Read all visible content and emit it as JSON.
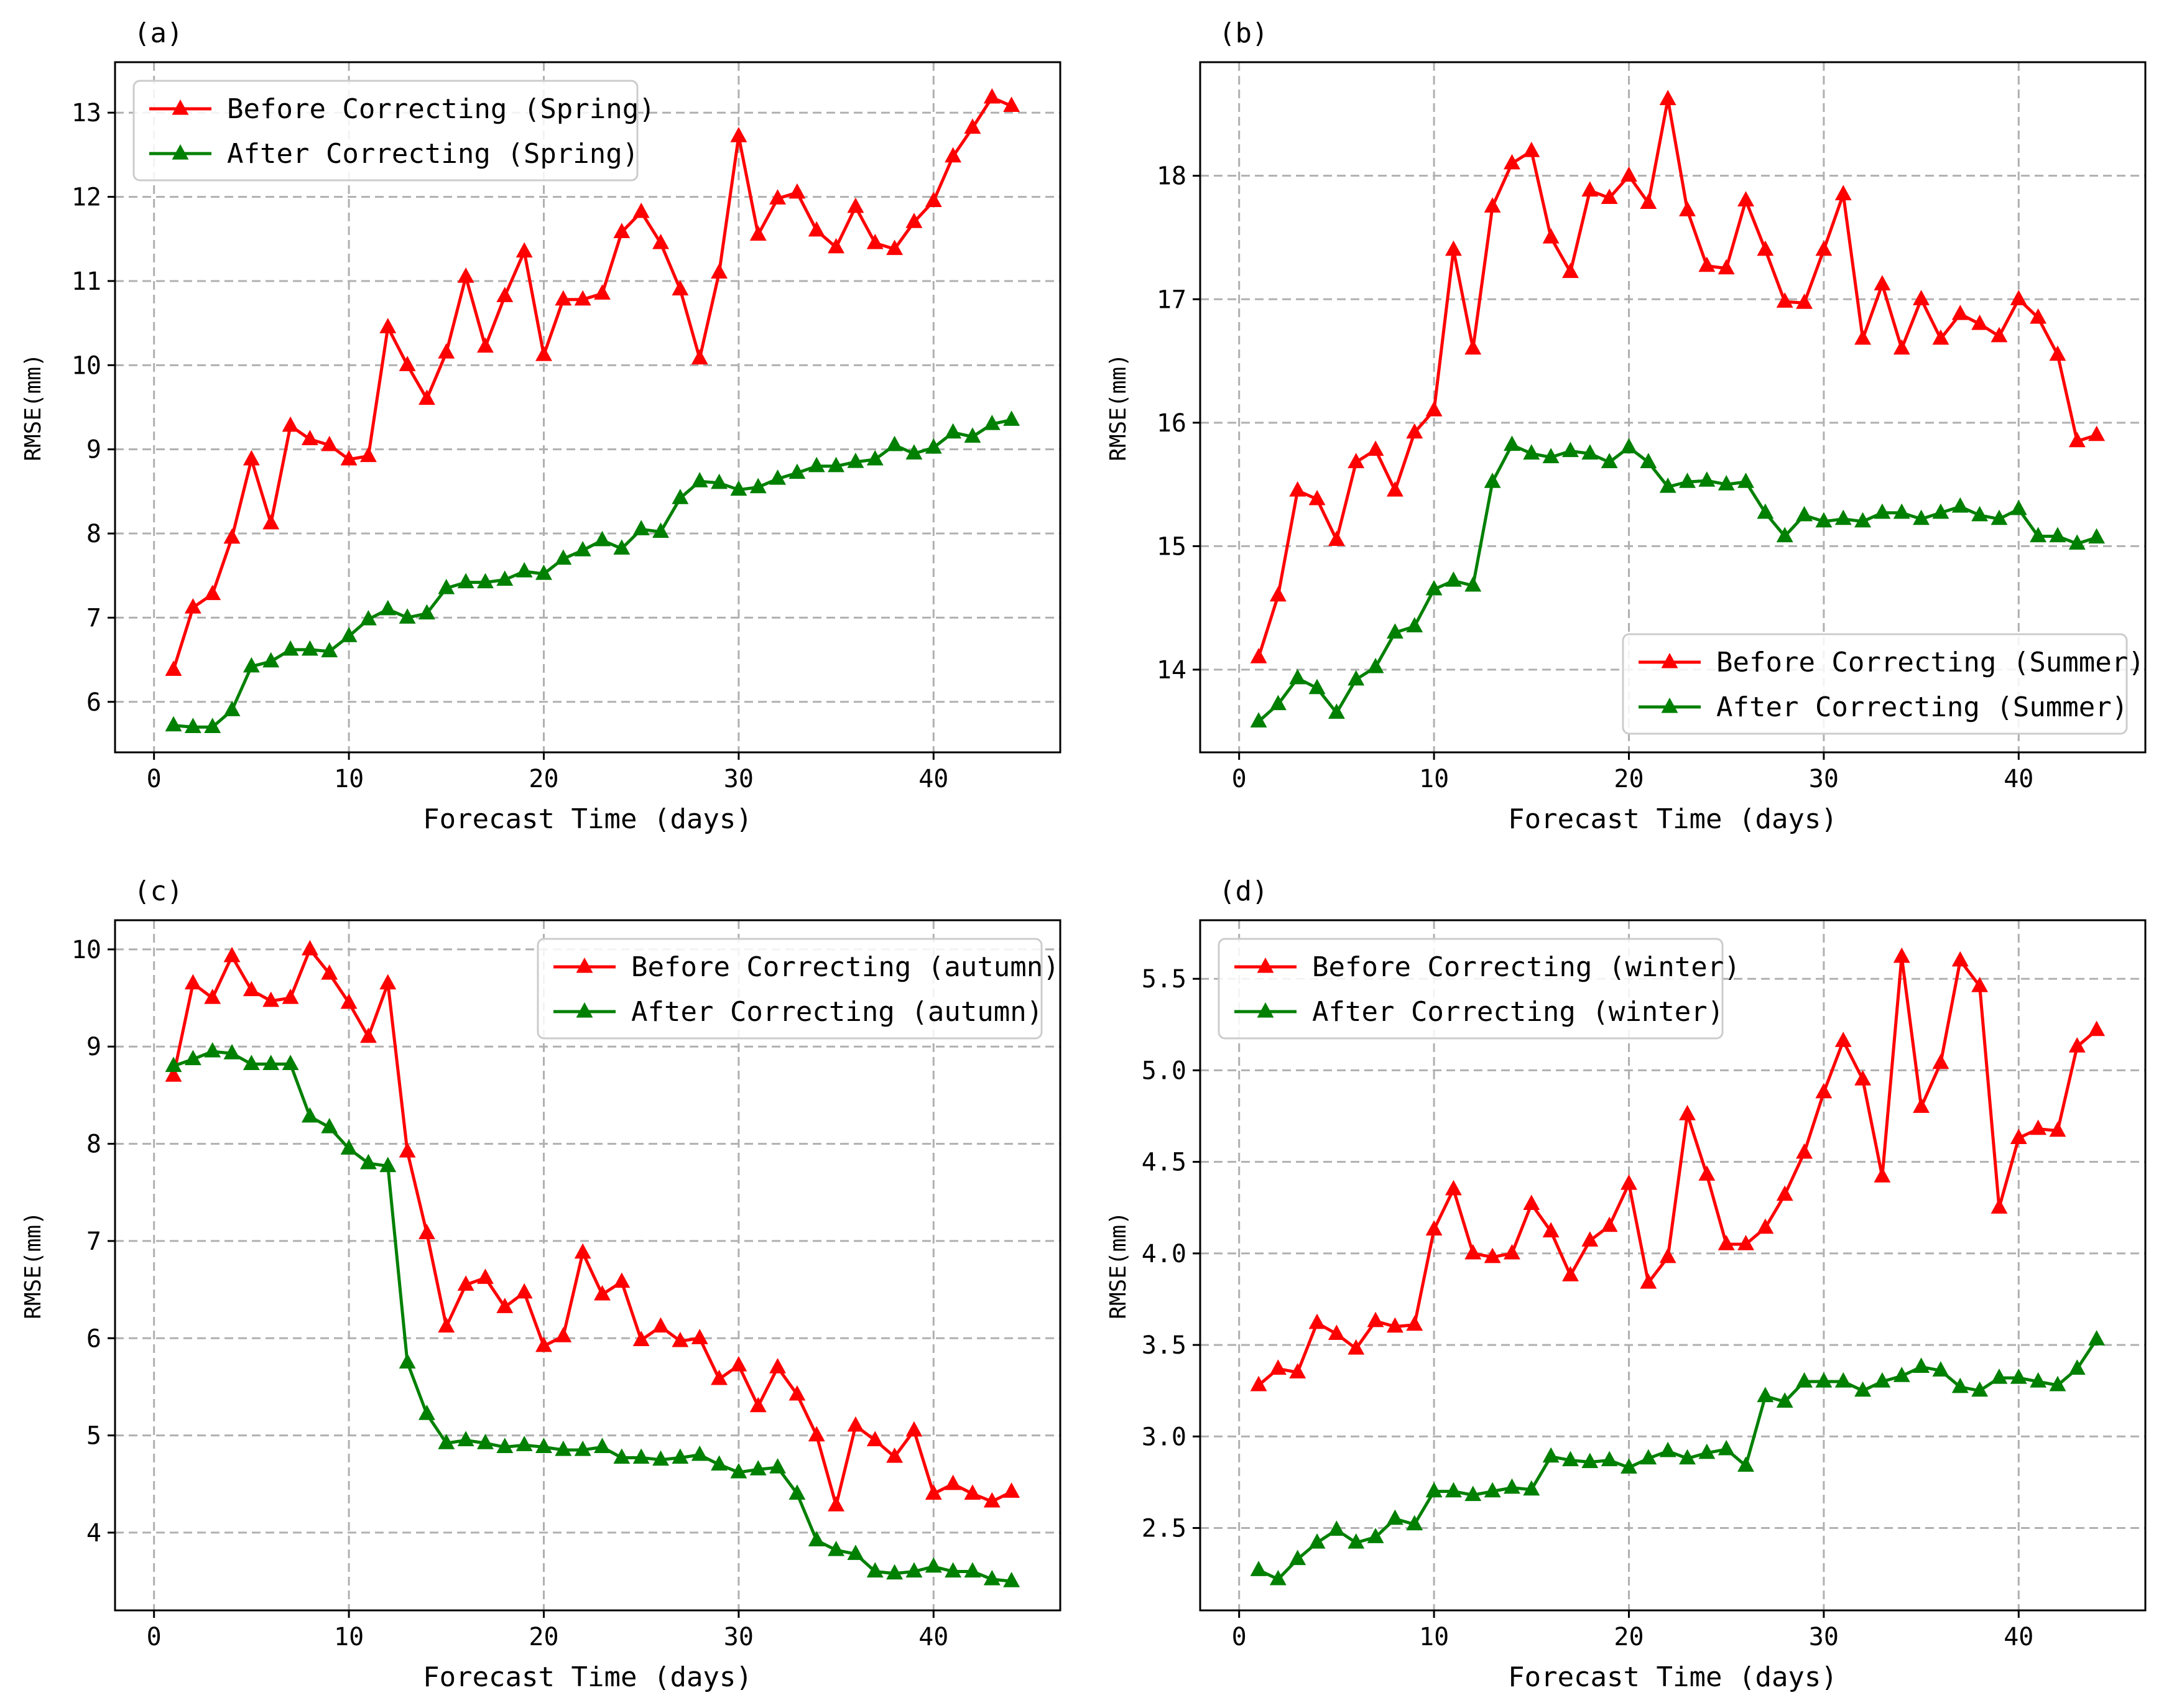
{
  "figure": {
    "xlabel": "Forecast Time (days)",
    "ylabel": "RMSE(mm)"
  },
  "chart_data": [
    {
      "type": "line",
      "panel_label": "(a)",
      "xlabel": "Forecast Time (days)",
      "ylabel": "RMSE(mm)",
      "xlim": [
        -2,
        46.5
      ],
      "ylim": [
        5.4,
        13.6
      ],
      "xticks": [
        0,
        10,
        20,
        30,
        40
      ],
      "yticks": [
        6,
        7,
        8,
        9,
        10,
        11,
        12,
        13
      ],
      "ytick_labels": [
        "6",
        "7",
        "8",
        "9",
        "10",
        "11",
        "12",
        "13"
      ],
      "grid": true,
      "legend_position": "top-left",
      "x": [
        1,
        2,
        3,
        4,
        5,
        6,
        7,
        8,
        9,
        10,
        11,
        12,
        13,
        14,
        15,
        16,
        17,
        18,
        19,
        20,
        21,
        22,
        23,
        24,
        25,
        26,
        27,
        28,
        29,
        30,
        31,
        32,
        33,
        34,
        35,
        36,
        37,
        38,
        39,
        40,
        41,
        42,
        43,
        44
      ],
      "series": [
        {
          "name": "Before Correcting (Spring)",
          "color": "#ff0000",
          "values": [
            6.38,
            7.12,
            7.28,
            7.95,
            8.88,
            8.12,
            9.28,
            9.12,
            9.05,
            8.88,
            8.92,
            10.45,
            10.0,
            9.6,
            10.15,
            11.05,
            10.22,
            10.82,
            11.35,
            10.12,
            10.78,
            10.78,
            10.85,
            11.58,
            11.82,
            11.45,
            10.9,
            10.08,
            11.1,
            12.72,
            11.55,
            11.98,
            12.05,
            11.6,
            11.4,
            11.88,
            11.45,
            11.38,
            11.7,
            11.95,
            12.48,
            12.82,
            13.18,
            13.08
          ]
        },
        {
          "name": "After Correcting (Spring)",
          "color": "#008000",
          "values": [
            5.72,
            5.7,
            5.7,
            5.9,
            6.42,
            6.48,
            6.62,
            6.62,
            6.6,
            6.78,
            6.98,
            7.1,
            7.0,
            7.05,
            7.35,
            7.42,
            7.42,
            7.45,
            7.55,
            7.52,
            7.7,
            7.8,
            7.92,
            7.82,
            8.05,
            8.02,
            8.42,
            8.62,
            8.6,
            8.52,
            8.55,
            8.65,
            8.72,
            8.8,
            8.8,
            8.85,
            8.88,
            9.05,
            8.95,
            9.02,
            9.2,
            9.15,
            9.3,
            9.35
          ]
        }
      ]
    },
    {
      "type": "line",
      "panel_label": "(b)",
      "xlabel": "Forecast Time (days)",
      "ylabel": "RMSE(mm)",
      "xlim": [
        -2,
        46.5
      ],
      "ylim": [
        13.33,
        18.92
      ],
      "xticks": [
        0,
        10,
        20,
        30,
        40
      ],
      "yticks": [
        14,
        15,
        16,
        17,
        18
      ],
      "ytick_labels": [
        "14",
        "15",
        "16",
        "17",
        "18"
      ],
      "grid": true,
      "legend_position": "lower-right",
      "x": [
        1,
        2,
        3,
        4,
        5,
        6,
        7,
        8,
        9,
        10,
        11,
        12,
        13,
        14,
        15,
        16,
        17,
        18,
        19,
        20,
        21,
        22,
        23,
        24,
        25,
        26,
        27,
        28,
        29,
        30,
        31,
        32,
        33,
        34,
        35,
        36,
        37,
        38,
        39,
        40,
        41,
        42,
        43,
        44
      ],
      "series": [
        {
          "name": "Before Correcting (Summer)",
          "color": "#ff0000",
          "values": [
            14.1,
            14.6,
            15.45,
            15.38,
            15.05,
            15.68,
            15.78,
            15.45,
            15.92,
            16.1,
            17.4,
            16.6,
            17.75,
            18.1,
            18.2,
            17.5,
            17.22,
            17.88,
            17.82,
            18.0,
            17.78,
            18.62,
            17.72,
            17.27,
            17.25,
            17.8,
            17.4,
            16.98,
            16.97,
            17.4,
            17.85,
            16.68,
            17.12,
            16.6,
            17.0,
            16.68,
            16.88,
            16.8,
            16.7,
            17.0,
            16.85,
            16.55,
            15.85,
            15.9
          ]
        },
        {
          "name": "After Correcting (Summer)",
          "color": "#008000",
          "values": [
            13.58,
            13.72,
            13.93,
            13.85,
            13.65,
            13.92,
            14.02,
            14.3,
            14.35,
            14.65,
            14.72,
            14.68,
            15.52,
            15.82,
            15.75,
            15.72,
            15.77,
            15.75,
            15.68,
            15.8,
            15.68,
            15.48,
            15.52,
            15.53,
            15.5,
            15.52,
            15.27,
            15.08,
            15.25,
            15.2,
            15.22,
            15.2,
            15.27,
            15.27,
            15.22,
            15.27,
            15.32,
            15.25,
            15.22,
            15.3,
            15.08,
            15.08,
            15.02,
            15.07
          ]
        }
      ]
    },
    {
      "type": "line",
      "panel_label": "(c)",
      "xlabel": "Forecast Time (days)",
      "ylabel": "RMSE(mm)",
      "xlim": [
        -2,
        46.5
      ],
      "ylim": [
        3.2,
        10.3
      ],
      "xticks": [
        0,
        10,
        20,
        30,
        40
      ],
      "yticks": [
        4,
        5,
        6,
        7,
        8,
        9,
        10
      ],
      "ytick_labels": [
        "4",
        "5",
        "6",
        "7",
        "8",
        "9",
        "10"
      ],
      "grid": true,
      "legend_position": "top-right",
      "x": [
        1,
        2,
        3,
        4,
        5,
        6,
        7,
        8,
        9,
        10,
        11,
        12,
        13,
        14,
        15,
        16,
        17,
        18,
        19,
        20,
        21,
        22,
        23,
        24,
        25,
        26,
        27,
        28,
        29,
        30,
        31,
        32,
        33,
        34,
        35,
        36,
        37,
        38,
        39,
        40,
        41,
        42,
        43,
        44
      ],
      "series": [
        {
          "name": "Before Correcting (autumn)",
          "color": "#ff0000",
          "values": [
            8.7,
            9.65,
            9.5,
            9.93,
            9.58,
            9.47,
            9.5,
            10.0,
            9.75,
            9.45,
            9.1,
            9.65,
            7.92,
            7.08,
            6.12,
            6.55,
            6.62,
            6.32,
            6.47,
            5.92,
            6.02,
            6.88,
            6.45,
            6.58,
            5.98,
            6.12,
            5.97,
            6.0,
            5.58,
            5.72,
            5.3,
            5.7,
            5.42,
            5.0,
            4.28,
            5.1,
            4.95,
            4.78,
            5.05,
            4.4,
            4.5,
            4.4,
            4.32,
            4.42
          ]
        },
        {
          "name": "After Correcting (autumn)",
          "color": "#008000",
          "values": [
            8.8,
            8.87,
            8.95,
            8.93,
            8.82,
            8.82,
            8.82,
            8.28,
            8.17,
            7.95,
            7.8,
            7.77,
            5.75,
            5.22,
            4.92,
            4.95,
            4.92,
            4.88,
            4.9,
            4.88,
            4.85,
            4.85,
            4.88,
            4.77,
            4.77,
            4.75,
            4.77,
            4.8,
            4.7,
            4.62,
            4.65,
            4.67,
            4.4,
            3.92,
            3.82,
            3.78,
            3.6,
            3.58,
            3.6,
            3.65,
            3.6,
            3.6,
            3.52,
            3.5
          ]
        }
      ]
    },
    {
      "type": "line",
      "panel_label": "(d)",
      "xlabel": "Forecast Time (days)",
      "ylabel": "RMSE(mm)",
      "xlim": [
        -2,
        46.5
      ],
      "ylim": [
        2.05,
        5.82
      ],
      "xticks": [
        0,
        10,
        20,
        30,
        40
      ],
      "yticks": [
        2.5,
        3.0,
        3.5,
        4.0,
        4.5,
        5.0,
        5.5
      ],
      "ytick_labels": [
        "2.5",
        "3.0",
        "3.5",
        "4.0",
        "4.5",
        "5.0",
        "5.5"
      ],
      "grid": true,
      "legend_position": "top-left",
      "x": [
        1,
        2,
        3,
        4,
        5,
        6,
        7,
        8,
        9,
        10,
        11,
        12,
        13,
        14,
        15,
        16,
        17,
        18,
        19,
        20,
        21,
        22,
        23,
        24,
        25,
        26,
        27,
        28,
        29,
        30,
        31,
        32,
        33,
        34,
        35,
        36,
        37,
        38,
        39,
        40,
        41,
        42,
        43,
        44
      ],
      "series": [
        {
          "name": "Before Correcting (winter)",
          "color": "#ff0000",
          "values": [
            3.28,
            3.37,
            3.35,
            3.62,
            3.56,
            3.48,
            3.63,
            3.6,
            3.61,
            4.13,
            4.35,
            4.0,
            3.98,
            4.0,
            4.27,
            4.12,
            3.88,
            4.07,
            4.15,
            4.38,
            3.84,
            3.98,
            4.76,
            4.43,
            4.05,
            4.05,
            4.14,
            4.32,
            4.55,
            4.88,
            5.16,
            4.95,
            4.42,
            5.62,
            4.8,
            5.04,
            5.6,
            5.46,
            4.25,
            4.63,
            4.68,
            4.67,
            5.13,
            5.22
          ]
        },
        {
          "name": "After Correcting (winter)",
          "color": "#008000",
          "values": [
            2.27,
            2.22,
            2.33,
            2.42,
            2.49,
            2.42,
            2.45,
            2.55,
            2.52,
            2.7,
            2.7,
            2.68,
            2.7,
            2.72,
            2.71,
            2.89,
            2.87,
            2.86,
            2.87,
            2.83,
            2.88,
            2.92,
            2.88,
            2.91,
            2.93,
            2.84,
            3.22,
            3.19,
            3.3,
            3.3,
            3.3,
            3.25,
            3.3,
            3.33,
            3.38,
            3.36,
            3.27,
            3.25,
            3.32,
            3.32,
            3.3,
            3.28,
            3.37,
            3.53
          ]
        }
      ]
    }
  ]
}
